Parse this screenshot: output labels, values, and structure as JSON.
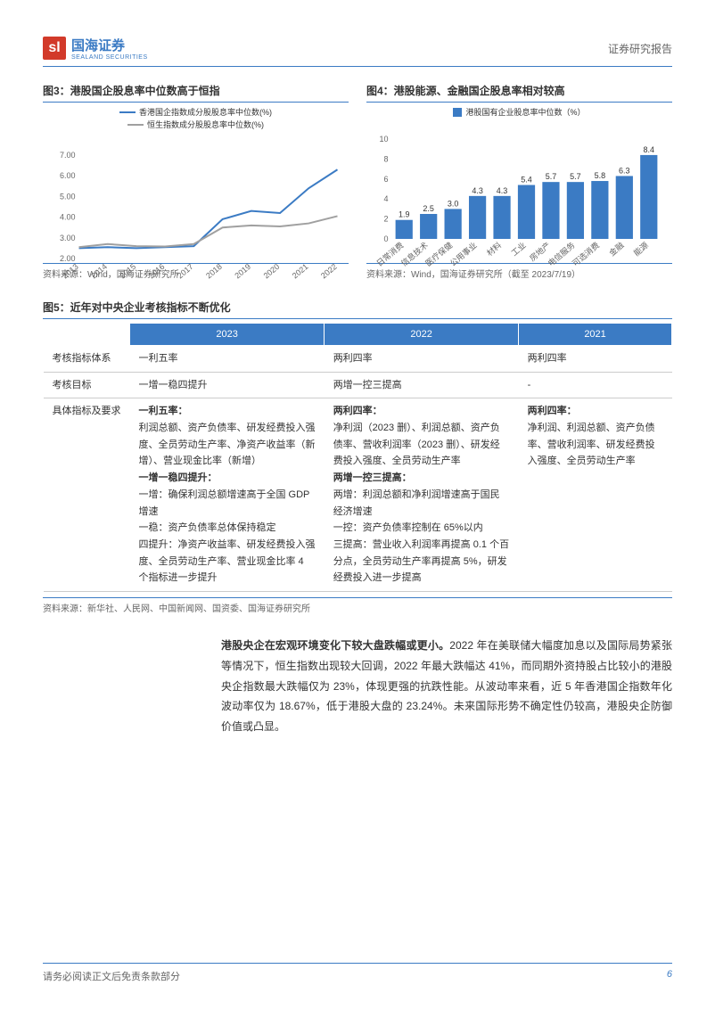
{
  "header": {
    "brand_cn": "国海证券",
    "brand_en": "SEALAND SECURITIES",
    "report_type": "证券研究报告"
  },
  "fig3": {
    "caption": "图3：港股国企股息率中位数高于恒指",
    "type": "line",
    "legend": [
      {
        "label": "香港国企指数成分股股息率中位数(%)",
        "color": "#3b7bc4"
      },
      {
        "label": "恒生指数成分股股息率中位数(%)",
        "color": "#a0a0a0"
      }
    ],
    "categories": [
      "2013",
      "2014",
      "2015",
      "2016",
      "2017",
      "2018",
      "2019",
      "2020",
      "2021",
      "2022"
    ],
    "series": [
      {
        "name": "soe",
        "color": "#3b7bc4",
        "width": 2,
        "values": [
          2.5,
          2.55,
          2.5,
          2.55,
          2.6,
          3.9,
          4.3,
          4.2,
          5.4,
          6.3
        ]
      },
      {
        "name": "hsi",
        "color": "#a0a0a0",
        "width": 2,
        "values": [
          2.55,
          2.7,
          2.6,
          2.58,
          2.7,
          3.5,
          3.6,
          3.55,
          3.7,
          4.05
        ]
      }
    ],
    "ylim": [
      2.0,
      7.0
    ],
    "ytick_step": 1.0,
    "y_format": "fixed2",
    "background_color": "#ffffff",
    "source": "资料来源：Wind，国海证券研究所"
  },
  "fig4": {
    "caption": "图4：港股能源、金融国企股息率相对较高",
    "type": "bar",
    "legend": [
      {
        "label": "港股国有企业股息率中位数（%）",
        "color": "#3b7bc4"
      }
    ],
    "categories": [
      "日常消费",
      "信息技术",
      "医疗保健",
      "公用事业",
      "材料",
      "工业",
      "房地产",
      "电信服务",
      "可选消费",
      "金融",
      "能源"
    ],
    "values": [
      1.9,
      2.5,
      3.0,
      4.3,
      4.3,
      5.4,
      5.7,
      5.7,
      5.8,
      6.3,
      8.4
    ],
    "value_labels": [
      "1.9",
      "2.5",
      "3.0",
      "4.3",
      "4.3",
      "5.4",
      "5.7",
      "5.7",
      "5.8",
      "6.3",
      "8.4"
    ],
    "ylim": [
      0,
      10
    ],
    "ytick_step": 2,
    "bar_color": "#3b7bc4",
    "label_fontsize": 9,
    "background_color": "#ffffff",
    "source": "资料来源：Wind，国海证券研究所（截至 2023/7/19）"
  },
  "fig5": {
    "caption": "图5：近年对中央企业考核指标不断优化",
    "columns": [
      "",
      "2023",
      "2022",
      "2021"
    ],
    "rows": [
      {
        "label": "考核指标体系",
        "c2023": "一利五率",
        "c2022": "两利四率",
        "c2021": "两利四率"
      },
      {
        "label": "考核目标",
        "c2023": "一增一稳四提升",
        "c2022": "两增一控三提高",
        "c2021": "-"
      },
      {
        "label": "具体指标及要求",
        "c2023": "一利五率：\n利润总额、资产负债率、研发经费投入强度、全员劳动生产率、净资产收益率（新增）、营业现金比率（新增）\n一增一稳四提升：\n一增：确保利润总额增速高于全国 GDP 增速\n一稳：资产负债率总体保持稳定\n四提升：净资产收益率、研发经费投入强度、全员劳动生产率、营业现金比率 4 个指标进一步提升",
        "c2022": "两利四率：\n净利润（2023 删）、利润总额、资产负债率、营收利润率（2023 删）、研发经费投入强度、全员劳动生产率\n两增一控三提高：\n两增：利润总额和净利润增速高于国民经济增速\n一控：资产负债率控制在 65%以内\n三提高：营业收入利润率再提高 0.1 个百分点，全员劳动生产率再提高 5%，研发经费投入进一步提高",
        "c2021": "两利四率：\n净利润、利润总额、资产负债率、营收利润率、研发经费投入强度、全员劳动生产率"
      }
    ],
    "source": "资料来源：新华社、人民网、中国新闻网、国资委、国海证券研究所"
  },
  "body": {
    "lead": "港股央企在宏观环境变化下较大盘跌幅或更小。",
    "text": "2022 年在美联储大幅度加息以及国际局势紧张等情况下，恒生指数出现较大回调，2022 年最大跌幅达 41%，而同期外资持股占比较小的港股央企指数最大跌幅仅为 23%，体现更强的抗跌性能。从波动率来看，近 5 年香港国企指数年化波动率仅为 18.67%，低于港股大盘的 23.24%。未来国际形势不确定性仍较高，港股央企防御价值或凸显。"
  },
  "footer": {
    "disclaimer": "请务必阅读正文后免责条款部分",
    "page": "6"
  }
}
